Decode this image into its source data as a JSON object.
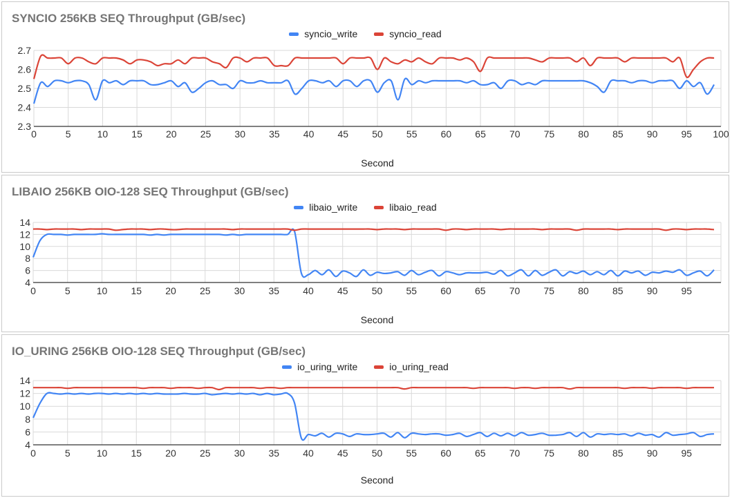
{
  "colors": {
    "write": "#4285f4",
    "read": "#db4437",
    "grid": "#d9d9d9",
    "axis": "#333333",
    "title": "#757575"
  },
  "chart_data": [
    {
      "type": "line",
      "title": "SYNCIO 256KB SEQ Throughput (GB/sec)",
      "xlabel": "Second",
      "ylabel": "",
      "xlim": [
        0,
        100
      ],
      "ylim": [
        2.3,
        2.7
      ],
      "xticks": [
        "0",
        "5",
        "10",
        "15",
        "20",
        "25",
        "30",
        "35",
        "40",
        "45",
        "50",
        "55",
        "60",
        "65",
        "70",
        "75",
        "80",
        "85",
        "90",
        "95",
        "100"
      ],
      "yticks": [
        "2.3",
        "2.4",
        "2.5",
        "2.6",
        "2.7"
      ],
      "grid": true,
      "legend": "top-center",
      "x": [
        0,
        1,
        2,
        3,
        4,
        5,
        6,
        7,
        8,
        9,
        10,
        11,
        12,
        13,
        14,
        15,
        16,
        17,
        18,
        19,
        20,
        21,
        22,
        23,
        24,
        25,
        26,
        27,
        28,
        29,
        30,
        31,
        32,
        33,
        34,
        35,
        36,
        37,
        38,
        39,
        40,
        41,
        42,
        43,
        44,
        45,
        46,
        47,
        48,
        49,
        50,
        51,
        52,
        53,
        54,
        55,
        56,
        57,
        58,
        59,
        60,
        61,
        62,
        63,
        64,
        65,
        66,
        67,
        68,
        69,
        70,
        71,
        72,
        73,
        74,
        75,
        76,
        77,
        78,
        79,
        80,
        81,
        82,
        83,
        84,
        85,
        86,
        87,
        88,
        89,
        90,
        91,
        92,
        93,
        94,
        95,
        96,
        97,
        98,
        99
      ],
      "series": [
        {
          "name": "syncio_write",
          "color": "#4285f4",
          "values": [
            2.42,
            2.53,
            2.51,
            2.54,
            2.54,
            2.53,
            2.54,
            2.54,
            2.52,
            2.44,
            2.54,
            2.53,
            2.54,
            2.52,
            2.54,
            2.54,
            2.54,
            2.52,
            2.52,
            2.53,
            2.54,
            2.51,
            2.53,
            2.48,
            2.5,
            2.53,
            2.54,
            2.52,
            2.52,
            2.5,
            2.54,
            2.53,
            2.53,
            2.54,
            2.53,
            2.53,
            2.53,
            2.54,
            2.47,
            2.5,
            2.54,
            2.54,
            2.53,
            2.54,
            2.51,
            2.54,
            2.54,
            2.51,
            2.54,
            2.54,
            2.48,
            2.53,
            2.54,
            2.44,
            2.55,
            2.52,
            2.54,
            2.53,
            2.54,
            2.54,
            2.54,
            2.54,
            2.54,
            2.53,
            2.54,
            2.52,
            2.52,
            2.53,
            2.5,
            2.54,
            2.54,
            2.52,
            2.53,
            2.52,
            2.54,
            2.54,
            2.54,
            2.54,
            2.54,
            2.54,
            2.54,
            2.53,
            2.51,
            2.48,
            2.54,
            2.54,
            2.54,
            2.53,
            2.54,
            2.54,
            2.53,
            2.54,
            2.54,
            2.54,
            2.5,
            2.54,
            2.51,
            2.53,
            2.47,
            2.52
          ]
        },
        {
          "name": "syncio_read",
          "color": "#db4437",
          "values": [
            2.55,
            2.67,
            2.66,
            2.66,
            2.66,
            2.63,
            2.66,
            2.66,
            2.64,
            2.63,
            2.66,
            2.66,
            2.66,
            2.65,
            2.63,
            2.65,
            2.65,
            2.64,
            2.62,
            2.63,
            2.63,
            2.65,
            2.63,
            2.66,
            2.66,
            2.66,
            2.64,
            2.63,
            2.61,
            2.66,
            2.66,
            2.64,
            2.66,
            2.66,
            2.66,
            2.62,
            2.62,
            2.62,
            2.66,
            2.66,
            2.66,
            2.66,
            2.66,
            2.66,
            2.66,
            2.63,
            2.66,
            2.66,
            2.66,
            2.66,
            2.6,
            2.66,
            2.64,
            2.63,
            2.65,
            2.64,
            2.66,
            2.64,
            2.63,
            2.66,
            2.66,
            2.66,
            2.65,
            2.66,
            2.64,
            2.59,
            2.66,
            2.66,
            2.66,
            2.66,
            2.66,
            2.66,
            2.66,
            2.65,
            2.64,
            2.66,
            2.66,
            2.66,
            2.66,
            2.64,
            2.66,
            2.62,
            2.66,
            2.66,
            2.66,
            2.66,
            2.64,
            2.66,
            2.66,
            2.66,
            2.66,
            2.66,
            2.66,
            2.64,
            2.66,
            2.56,
            2.6,
            2.64,
            2.66,
            2.66
          ]
        }
      ]
    },
    {
      "type": "line",
      "title": "LIBAIO 256KB OIO-128 SEQ Throughput (GB/sec)",
      "xlabel": "Second",
      "ylabel": "",
      "xlim": [
        0,
        100
      ],
      "ylim": [
        4,
        14
      ],
      "xticks": [
        "0",
        "5",
        "10",
        "15",
        "20",
        "25",
        "30",
        "35",
        "40",
        "45",
        "50",
        "55",
        "60",
        "65",
        "70",
        "75",
        "80",
        "85",
        "90",
        "95"
      ],
      "yticks": [
        "4",
        "6",
        "8",
        "10",
        "12",
        "14"
      ],
      "grid": true,
      "legend": "top-center",
      "x": [
        0,
        1,
        2,
        3,
        4,
        5,
        6,
        7,
        8,
        9,
        10,
        11,
        12,
        13,
        14,
        15,
        16,
        17,
        18,
        19,
        20,
        21,
        22,
        23,
        24,
        25,
        26,
        27,
        28,
        29,
        30,
        31,
        32,
        33,
        34,
        35,
        36,
        37,
        38,
        39,
        40,
        41,
        42,
        43,
        44,
        45,
        46,
        47,
        48,
        49,
        50,
        51,
        52,
        53,
        54,
        55,
        56,
        57,
        58,
        59,
        60,
        61,
        62,
        63,
        64,
        65,
        66,
        67,
        68,
        69,
        70,
        71,
        72,
        73,
        74,
        75,
        76,
        77,
        78,
        79,
        80,
        81,
        82,
        83,
        84,
        85,
        86,
        87,
        88,
        89,
        90,
        91,
        92,
        93,
        94,
        95,
        96,
        97,
        98,
        99
      ],
      "series": [
        {
          "name": "libaio_write",
          "color": "#4285f4",
          "values": [
            8.2,
            11.0,
            12.0,
            12.0,
            12.0,
            11.9,
            12.0,
            12.0,
            12.0,
            12.0,
            12.1,
            12.0,
            12.0,
            12.0,
            12.0,
            12.0,
            12.0,
            11.9,
            12.0,
            11.9,
            12.0,
            12.0,
            12.0,
            12.0,
            12.0,
            12.0,
            12.0,
            12.0,
            11.9,
            12.0,
            11.9,
            12.0,
            12.0,
            12.0,
            12.0,
            12.0,
            12.0,
            12.0,
            12.5,
            5.5,
            5.3,
            6.0,
            5.3,
            6.1,
            5.0,
            5.9,
            5.6,
            5.0,
            6.1,
            5.2,
            5.7,
            5.5,
            5.6,
            5.8,
            5.2,
            6.0,
            5.3,
            5.7,
            6.0,
            5.1,
            5.8,
            5.6,
            5.3,
            5.6,
            5.6,
            5.6,
            5.7,
            5.4,
            6.0,
            5.1,
            5.6,
            6.1,
            5.1,
            6.0,
            5.2,
            5.7,
            6.1,
            5.1,
            5.8,
            5.5,
            5.9,
            5.3,
            5.8,
            5.3,
            6.0,
            5.1,
            5.9,
            5.6,
            5.9,
            5.2,
            5.7,
            5.6,
            5.9,
            5.7,
            6.1,
            5.2,
            5.6,
            5.9,
            5.1,
            6.1
          ]
        },
        {
          "name": "libaio_read",
          "color": "#db4437",
          "values": [
            12.9,
            12.9,
            12.8,
            12.9,
            12.9,
            12.9,
            12.9,
            12.8,
            12.9,
            12.9,
            12.9,
            12.9,
            12.7,
            12.8,
            12.9,
            12.9,
            12.9,
            12.8,
            12.9,
            12.9,
            12.8,
            12.8,
            12.9,
            12.9,
            12.9,
            12.9,
            12.9,
            12.9,
            12.9,
            12.8,
            12.9,
            12.9,
            12.9,
            12.9,
            12.9,
            12.9,
            12.9,
            12.9,
            12.7,
            12.9,
            12.9,
            12.9,
            12.9,
            12.9,
            12.9,
            12.9,
            12.9,
            12.9,
            12.9,
            12.9,
            12.8,
            12.9,
            12.9,
            12.9,
            12.8,
            12.9,
            12.9,
            12.9,
            12.9,
            12.9,
            12.7,
            12.9,
            12.9,
            12.8,
            12.9,
            12.9,
            12.9,
            12.9,
            12.8,
            12.9,
            12.9,
            12.9,
            12.9,
            12.9,
            12.8,
            12.9,
            12.9,
            12.9,
            12.9,
            12.7,
            12.9,
            12.9,
            12.9,
            12.9,
            12.9,
            12.8,
            12.9,
            12.9,
            12.9,
            12.9,
            12.9,
            12.9,
            12.7,
            12.9,
            12.9,
            12.8,
            12.9,
            12.9,
            12.9,
            12.8
          ]
        }
      ]
    },
    {
      "type": "line",
      "title": "IO_URING 256KB OIO-128 SEQ Throughput (GB/sec)",
      "xlabel": "Second",
      "ylabel": "",
      "xlim": [
        0,
        100
      ],
      "ylim": [
        4,
        14
      ],
      "xticks": [
        "0",
        "5",
        "10",
        "15",
        "20",
        "25",
        "30",
        "35",
        "40",
        "45",
        "50",
        "55",
        "60",
        "65",
        "70",
        "75",
        "80",
        "85",
        "90",
        "95"
      ],
      "yticks": [
        "4",
        "6",
        "8",
        "10",
        "12",
        "14"
      ],
      "grid": true,
      "legend": "top-center",
      "x": [
        0,
        1,
        2,
        3,
        4,
        5,
        6,
        7,
        8,
        9,
        10,
        11,
        12,
        13,
        14,
        15,
        16,
        17,
        18,
        19,
        20,
        21,
        22,
        23,
        24,
        25,
        26,
        27,
        28,
        29,
        30,
        31,
        32,
        33,
        34,
        35,
        36,
        37,
        38,
        39,
        40,
        41,
        42,
        43,
        44,
        45,
        46,
        47,
        48,
        49,
        50,
        51,
        52,
        53,
        54,
        55,
        56,
        57,
        58,
        59,
        60,
        61,
        62,
        63,
        64,
        65,
        66,
        67,
        68,
        69,
        70,
        71,
        72,
        73,
        74,
        75,
        76,
        77,
        78,
        79,
        80,
        81,
        82,
        83,
        84,
        85,
        86,
        87,
        88,
        89,
        90,
        91,
        92,
        93,
        94,
        95,
        96,
        97,
        98,
        99
      ],
      "series": [
        {
          "name": "io_uring_write",
          "color": "#4285f4",
          "values": [
            8.2,
            10.5,
            12.0,
            12.0,
            11.9,
            12.0,
            11.9,
            12.0,
            11.9,
            12.0,
            12.0,
            11.9,
            12.0,
            11.9,
            12.0,
            11.9,
            12.0,
            11.9,
            12.0,
            11.9,
            11.9,
            11.9,
            12.0,
            11.9,
            11.9,
            12.0,
            11.8,
            11.9,
            12.0,
            11.9,
            12.0,
            11.9,
            12.0,
            11.8,
            12.0,
            11.8,
            11.9,
            12.0,
            10.5,
            5.0,
            5.6,
            5.4,
            5.8,
            5.2,
            5.8,
            5.7,
            5.3,
            5.7,
            5.6,
            5.6,
            5.7,
            5.8,
            5.2,
            5.9,
            5.1,
            5.8,
            5.7,
            5.6,
            5.7,
            5.7,
            5.5,
            5.6,
            5.8,
            5.3,
            5.6,
            5.9,
            5.3,
            5.8,
            5.4,
            5.8,
            5.4,
            5.9,
            5.5,
            5.6,
            5.8,
            5.5,
            5.5,
            5.6,
            5.9,
            5.3,
            5.9,
            5.2,
            5.7,
            5.6,
            5.7,
            5.6,
            5.7,
            5.4,
            5.8,
            5.5,
            5.6,
            5.2,
            5.9,
            5.5,
            5.6,
            5.7,
            5.9,
            5.3,
            5.6,
            5.7
          ]
        },
        {
          "name": "io_uring_read",
          "color": "#db4437",
          "values": [
            12.9,
            12.9,
            12.9,
            12.9,
            12.9,
            12.8,
            12.9,
            12.9,
            12.9,
            12.9,
            12.9,
            12.9,
            12.9,
            12.9,
            12.9,
            12.9,
            12.8,
            12.9,
            12.9,
            12.9,
            12.8,
            12.9,
            12.9,
            12.9,
            12.8,
            12.9,
            12.9,
            12.6,
            12.9,
            12.9,
            12.9,
            12.9,
            12.9,
            12.8,
            12.9,
            12.9,
            12.8,
            12.9,
            12.9,
            12.9,
            12.9,
            12.9,
            12.9,
            12.9,
            12.9,
            12.9,
            12.9,
            12.9,
            12.9,
            12.9,
            12.9,
            12.9,
            12.9,
            12.9,
            12.7,
            12.9,
            12.9,
            12.9,
            12.9,
            12.9,
            12.9,
            12.9,
            12.9,
            12.9,
            12.8,
            12.9,
            12.9,
            12.9,
            12.9,
            12.9,
            12.8,
            12.9,
            12.9,
            12.8,
            12.9,
            12.9,
            12.9,
            12.9,
            12.7,
            12.9,
            12.9,
            12.9,
            12.9,
            12.9,
            12.9,
            12.9,
            12.8,
            12.9,
            12.9,
            12.9,
            12.8,
            12.9,
            12.9,
            12.9,
            12.9,
            12.8,
            12.9,
            12.9,
            12.9,
            12.9
          ]
        }
      ]
    }
  ]
}
